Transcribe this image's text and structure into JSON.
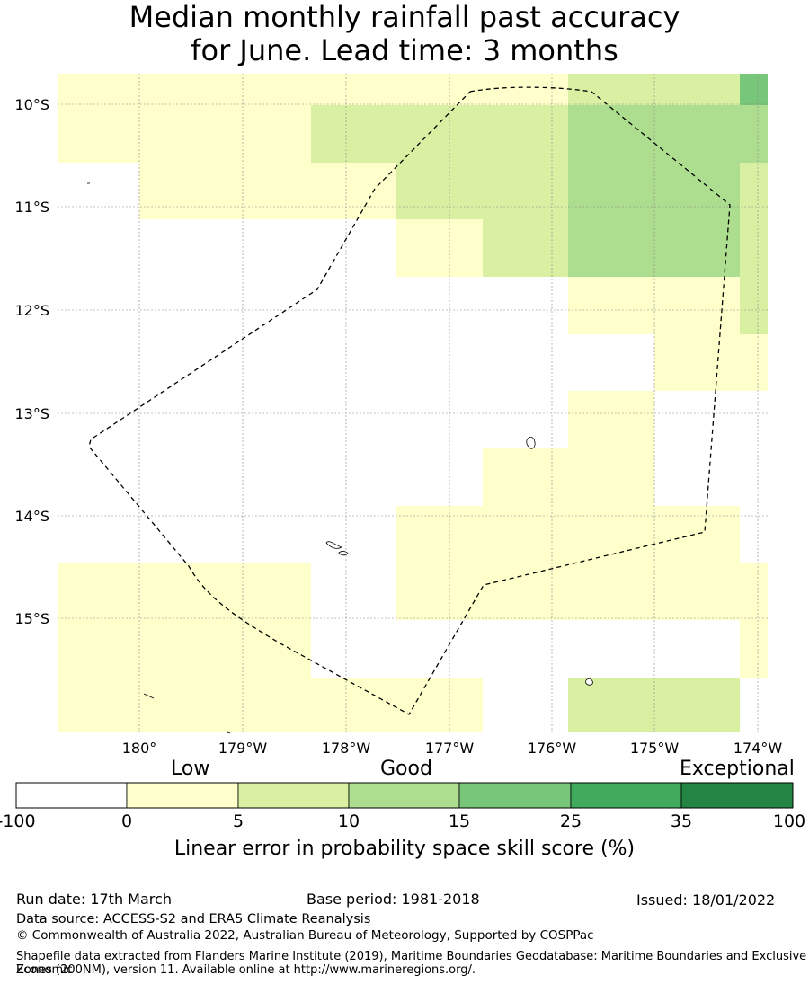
{
  "title_line1": "Median monthly rainfall past accuracy",
  "title_line2": "for June. Lead time: 3 months",
  "map": {
    "lon_labels": [
      "180°",
      "179°W",
      "178°W",
      "177°W",
      "176°W",
      "175°W",
      "174°W"
    ],
    "lat_labels": [
      "10°S",
      "11°S",
      "12°S",
      "13°S",
      "14°S",
      "15°S"
    ],
    "cell_rows": [
      "11112222233444445",
      "1111122222222333334",
      "01111222333334",
      "00001122234",
      "0000000222222223",
      "0000000222222222",
      "0000001111111111"
    ],
    "grid_text": [
      "22222222222233333333333333344",
      "11111111222222222223333333333",
      "00000011122222222222223333333",
      "00000000000111222222222222222",
      "00000000000000000111111111122",
      "00000000000000000111111111111",
      "00000000000000000000000111111"
    ]
  },
  "colorbar": {
    "categories": [
      "Low",
      "Good",
      "Exceptional"
    ],
    "ticks": [
      "-100",
      "0",
      "5",
      "10",
      "15",
      "25",
      "35",
      "100"
    ],
    "colors": [
      "#ffffff",
      "#ffffcc",
      "#d9f0a3",
      "#addd8e",
      "#78c679",
      "#41ab5d",
      "#238443"
    ],
    "label": "Linear error in probability space skill score (%)"
  },
  "footer": {
    "run_date": "Run date: 17th March",
    "base_period": "Base period: 1981-2018",
    "issued": "Issued: 18/01/2022",
    "data_source": "Data source: ACCESS-S2 and ERA5 Climate Reanalysis",
    "copyright": "© Commonwealth of Australia 2022, Australian Bureau of Meteorology, Supported by COSPPac",
    "shapefile_line1": "Shapefile data extracted from Flanders Marine Institute (2019), Maritime Boundaries Geodatabase: Maritime Boundaries and Exclusive Economic",
    "shapefile_line2": "Zones (200NM), version 11. Available online at http://www.marineregions.org/."
  }
}
